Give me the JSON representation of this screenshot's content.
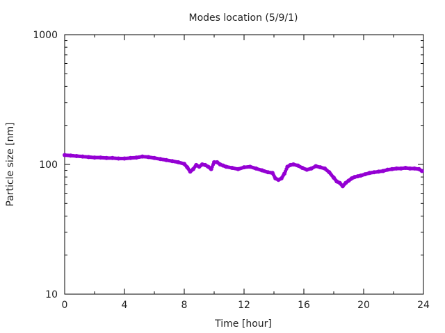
{
  "chart_data": {
    "type": "scatter",
    "title": "Modes location (5/9/1)",
    "xlabel": "Time [hour]",
    "ylabel": "Particle size [nm]",
    "xlim": [
      0,
      24
    ],
    "ylim": [
      10,
      1000
    ],
    "yscale": "log",
    "grid": false,
    "legend": "none",
    "marker_color": "#9400d3",
    "xticks": [
      "0",
      "4",
      "8",
      "12",
      "16",
      "20",
      "24"
    ],
    "yticks": [
      "10",
      "100",
      "1000"
    ],
    "ytick_values": [
      10,
      100,
      1000
    ],
    "x": [
      0.0,
      0.4,
      0.8,
      1.2,
      1.6,
      2.0,
      2.4,
      2.8,
      3.2,
      3.6,
      4.0,
      4.4,
      4.8,
      5.2,
      5.6,
      6.0,
      6.4,
      6.8,
      7.2,
      7.6,
      8.0,
      8.2,
      8.4,
      8.6,
      8.8,
      9.0,
      9.2,
      9.4,
      9.6,
      9.8,
      10.0,
      10.2,
      10.4,
      10.6,
      10.8,
      11.2,
      11.6,
      12.0,
      12.4,
      12.8,
      13.2,
      13.6,
      13.9,
      14.1,
      14.3,
      14.5,
      14.7,
      14.9,
      15.1,
      15.3,
      15.6,
      15.9,
      16.2,
      16.5,
      16.8,
      17.1,
      17.4,
      17.7,
      18.0,
      18.2,
      18.4,
      18.6,
      18.8,
      19.0,
      19.2,
      19.4,
      19.6,
      19.8,
      20.1,
      20.4,
      20.7,
      21.0,
      21.3,
      21.6,
      21.9,
      22.2,
      22.5,
      22.8,
      23.1,
      23.4,
      23.7,
      23.9
    ],
    "y": [
      118,
      117,
      116,
      115,
      114,
      113,
      113,
      112,
      112,
      111,
      111,
      112,
      113,
      115,
      114,
      112,
      110,
      108,
      106,
      104,
      101,
      95,
      88,
      92,
      99,
      96,
      100,
      99,
      96,
      92,
      104,
      104,
      100,
      98,
      96,
      94,
      92,
      95,
      96,
      93,
      90,
      87,
      86,
      78,
      76,
      78,
      85,
      96,
      99,
      100,
      98,
      94,
      91,
      93,
      97,
      95,
      93,
      87,
      79,
      74,
      72,
      68,
      72,
      75,
      78,
      80,
      81,
      82,
      84,
      86,
      87,
      88,
      89,
      91,
      92,
      93,
      93,
      94,
      93,
      93,
      92,
      89
    ]
  }
}
